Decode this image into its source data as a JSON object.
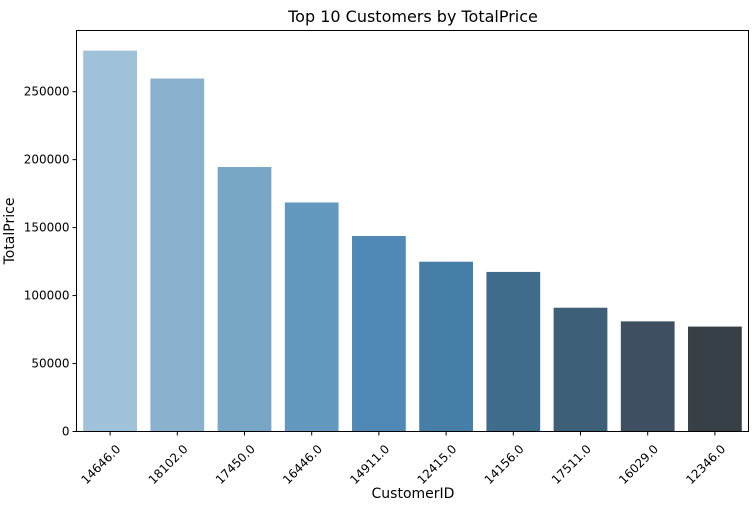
{
  "chart_data": {
    "type": "bar",
    "title": "Top 10 Customers by TotalPrice",
    "xlabel": "CustomerID",
    "ylabel": "TotalPrice",
    "categories": [
      "14646.0",
      "18102.0",
      "17450.0",
      "16446.0",
      "14911.0",
      "12415.0",
      "14156.0",
      "17511.0",
      "16029.0",
      "12346.0"
    ],
    "values": [
      280206,
      259657,
      194551,
      168472,
      143825,
      124915,
      117379,
      91063,
      81025,
      77184
    ],
    "colors": [
      "#9fc1da",
      "#8ab2cf",
      "#77a6c6",
      "#6399bf",
      "#5089b6",
      "#467ea8",
      "#406c8c",
      "#3e5f78",
      "#3d4f60",
      "#374047"
    ],
    "ylim": [
      0,
      295000
    ],
    "yticks": [
      0,
      50000,
      100000,
      150000,
      200000,
      250000
    ],
    "ytick_labels": [
      "0",
      "50000",
      "100000",
      "150000",
      "200000",
      "250000"
    ],
    "grid": false,
    "legend": "none"
  }
}
